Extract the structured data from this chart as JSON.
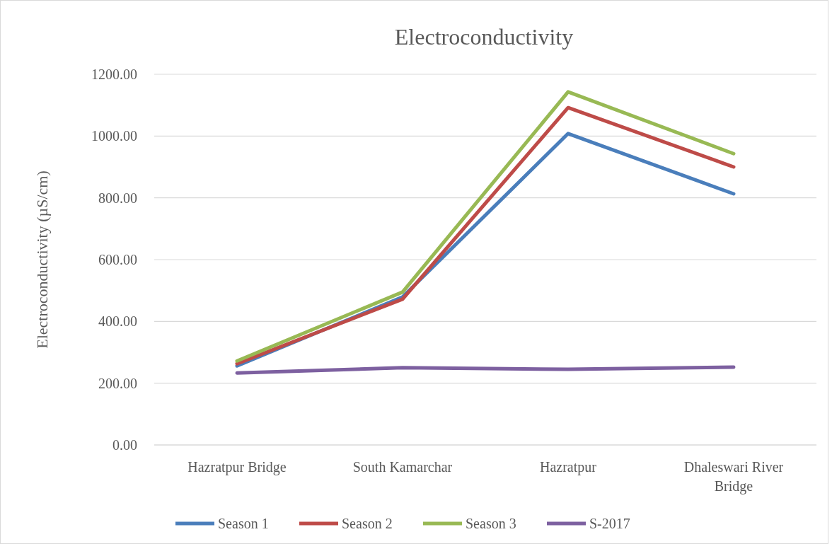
{
  "chart_data": {
    "type": "line",
    "title": "Electroconductivity",
    "ylabel": "Electroconductivity  (µS/cm)",
    "categories": [
      "Hazratpur Bridge",
      "South Kamarchar",
      "Hazratpur",
      "Dhaleswari River Bridge"
    ],
    "series": [
      {
        "name": "Season 1",
        "color": "#4a7ebb",
        "values": [
          256,
          479,
          1008,
          813
        ]
      },
      {
        "name": "Season 2",
        "color": "#be4b48",
        "values": [
          263,
          472,
          1092,
          900
        ]
      },
      {
        "name": "Season 3",
        "color": "#98b954",
        "values": [
          272,
          495,
          1143,
          943
        ]
      },
      {
        "name": "S-2017",
        "color": "#7d60a0",
        "values": [
          233,
          250,
          245,
          252
        ]
      }
    ],
    "ylim": [
      0,
      1200
    ],
    "yticks": [
      {
        "value": 0,
        "label": "0.00"
      },
      {
        "value": 200,
        "label": "200.00"
      },
      {
        "value": 400,
        "label": "400.00"
      },
      {
        "value": 600,
        "label": "600.00"
      },
      {
        "value": 800,
        "label": "800.00"
      },
      {
        "value": 1000,
        "label": "1000.00"
      },
      {
        "value": 1200,
        "label": "1200.00"
      }
    ],
    "grid": "y",
    "legend": "bottom",
    "marker": "none",
    "line_style": "solid"
  }
}
